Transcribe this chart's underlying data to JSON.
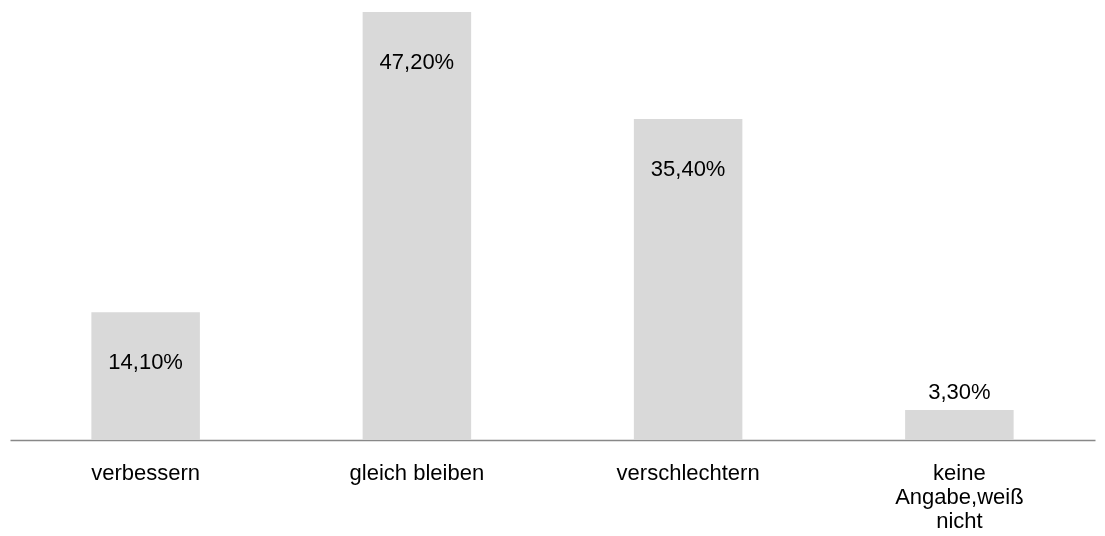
{
  "chart_data": {
    "type": "bar",
    "categories": [
      "verbessern",
      "gleich bleiben",
      "verschlechtern",
      "keine Angabe,weiß nicht"
    ],
    "values": [
      14.1,
      47.2,
      35.4,
      3.3
    ],
    "color": "#d9d9d9",
    "value_labels": [
      "14,10%",
      "47,20%",
      "35,40%",
      "3,30%"
    ]
  }
}
